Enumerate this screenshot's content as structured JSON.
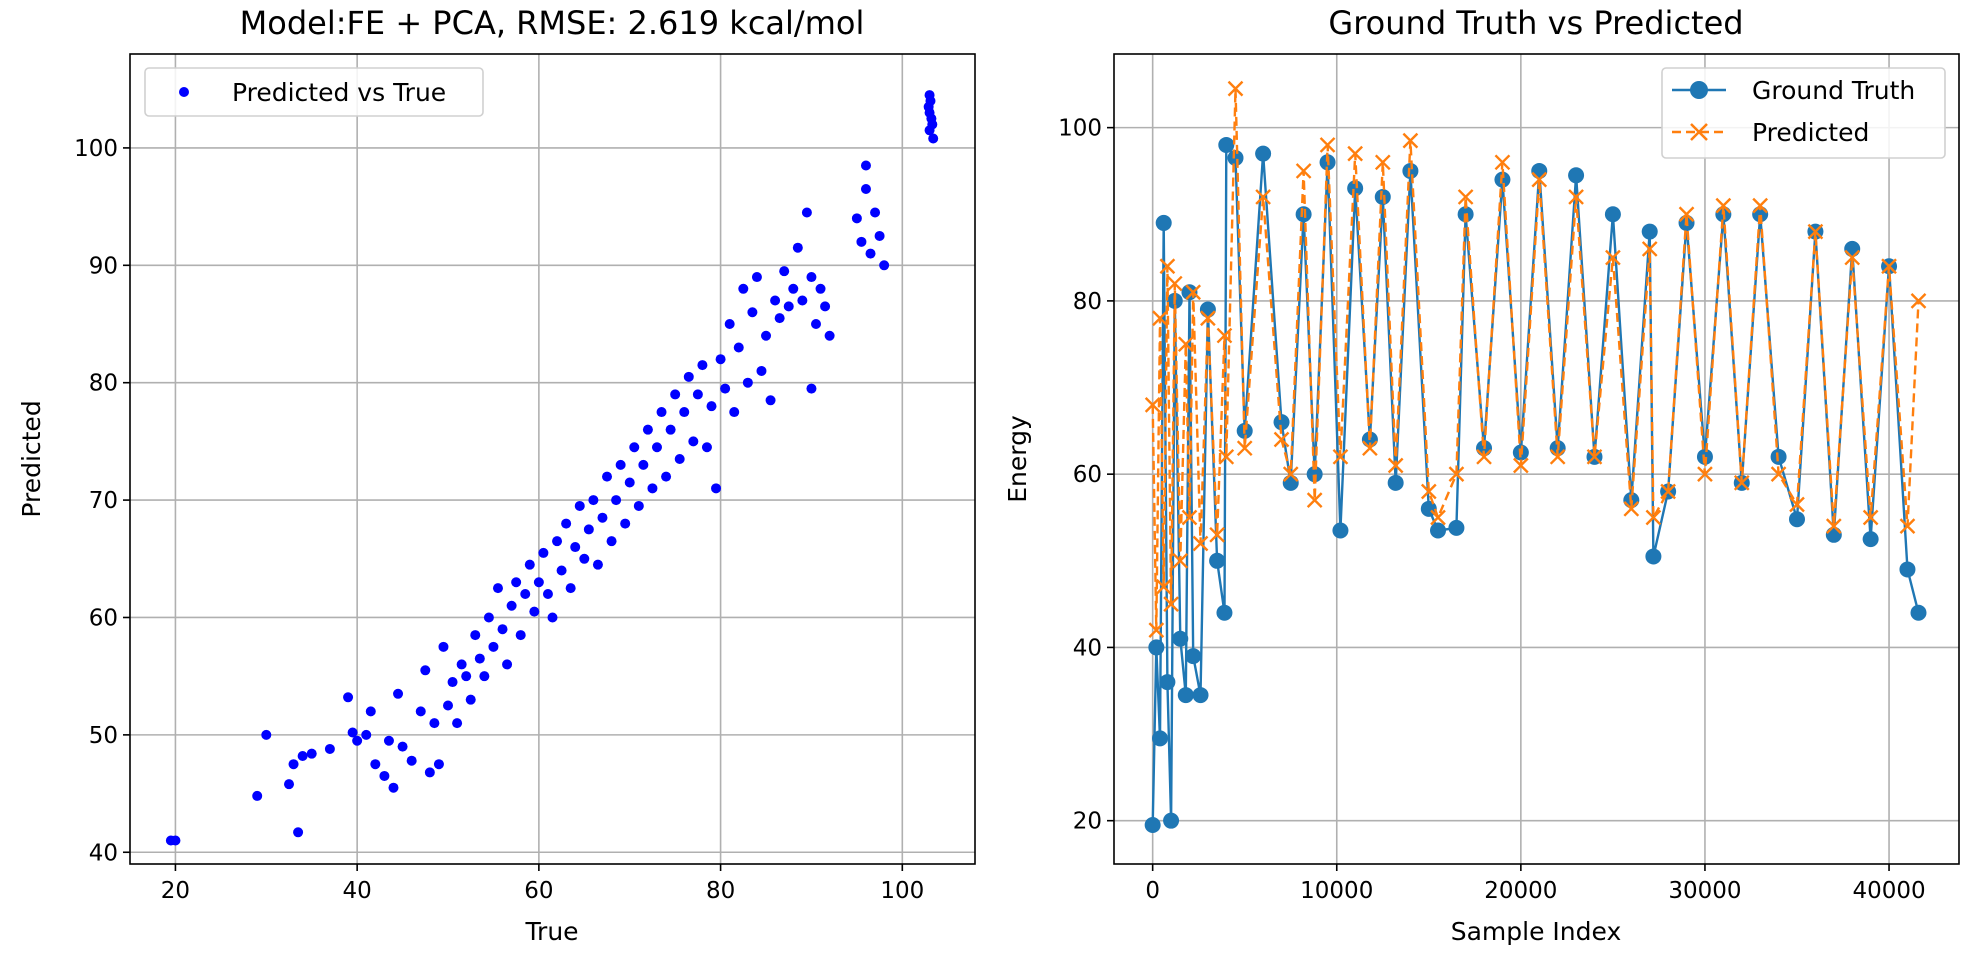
{
  "colors": {
    "scatter": "#0000ff",
    "ground_truth": "#1f77b4",
    "predicted": "#ff7f0e",
    "grid": "#b0b0b0"
  },
  "chart_data": [
    {
      "type": "scatter",
      "title": "Model:FE + PCA, RMSE: 2.619 kcal/mol",
      "xlabel": "True",
      "ylabel": "Predicted",
      "xlim": [
        15,
        108
      ],
      "ylim": [
        39,
        108
      ],
      "xticks": [
        20,
        40,
        60,
        80,
        100
      ],
      "yticks": [
        40,
        50,
        60,
        70,
        80,
        90,
        100
      ],
      "grid": true,
      "legend_position": "top-left",
      "series": [
        {
          "name": "Predicted vs True",
          "marker": "dot",
          "points": [
            [
              19.5,
              41
            ],
            [
              20,
              41
            ],
            [
              29,
              44.8
            ],
            [
              30,
              50
            ],
            [
              32.5,
              45.8
            ],
            [
              33,
              47.5
            ],
            [
              33.5,
              41.7
            ],
            [
              34,
              48.2
            ],
            [
              35,
              48.4
            ],
            [
              37,
              48.8
            ],
            [
              39,
              53.2
            ],
            [
              39.5,
              50.2
            ],
            [
              40,
              49.5
            ],
            [
              41,
              50
            ],
            [
              41.5,
              52
            ],
            [
              42,
              47.5
            ],
            [
              43,
              46.5
            ],
            [
              43.5,
              49.5
            ],
            [
              44,
              45.5
            ],
            [
              44.5,
              53.5
            ],
            [
              45,
              49
            ],
            [
              46,
              47.8
            ],
            [
              47,
              52
            ],
            [
              47.5,
              55.5
            ],
            [
              48,
              46.8
            ],
            [
              48.5,
              51
            ],
            [
              49,
              47.5
            ],
            [
              49.5,
              57.5
            ],
            [
              50,
              52.5
            ],
            [
              50.5,
              54.5
            ],
            [
              51,
              51
            ],
            [
              51.5,
              56
            ],
            [
              52,
              55
            ],
            [
              52.5,
              53
            ],
            [
              53,
              58.5
            ],
            [
              53.5,
              56.5
            ],
            [
              54,
              55
            ],
            [
              54.5,
              60
            ],
            [
              55,
              57.5
            ],
            [
              55.5,
              62.5
            ],
            [
              56,
              59
            ],
            [
              56.5,
              56
            ],
            [
              57,
              61
            ],
            [
              57.5,
              63
            ],
            [
              58,
              58.5
            ],
            [
              58.5,
              62
            ],
            [
              59,
              64.5
            ],
            [
              59.5,
              60.5
            ],
            [
              60,
              63
            ],
            [
              60.5,
              65.5
            ],
            [
              61,
              62
            ],
            [
              61.5,
              60
            ],
            [
              62,
              66.5
            ],
            [
              62.5,
              64
            ],
            [
              63,
              68
            ],
            [
              63.5,
              62.5
            ],
            [
              64,
              66
            ],
            [
              64.5,
              69.5
            ],
            [
              65,
              65
            ],
            [
              65.5,
              67.5
            ],
            [
              66,
              70
            ],
            [
              66.5,
              64.5
            ],
            [
              67,
              68.5
            ],
            [
              67.5,
              72
            ],
            [
              68,
              66.5
            ],
            [
              68.5,
              70
            ],
            [
              69,
              73
            ],
            [
              69.5,
              68
            ],
            [
              70,
              71.5
            ],
            [
              70.5,
              74.5
            ],
            [
              71,
              69.5
            ],
            [
              71.5,
              73
            ],
            [
              72,
              76
            ],
            [
              72.5,
              71
            ],
            [
              73,
              74.5
            ],
            [
              73.5,
              77.5
            ],
            [
              74,
              72
            ],
            [
              74.5,
              76
            ],
            [
              75,
              79
            ],
            [
              75.5,
              73.5
            ],
            [
              76,
              77.5
            ],
            [
              76.5,
              80.5
            ],
            [
              77,
              75
            ],
            [
              77.5,
              79
            ],
            [
              78,
              81.5
            ],
            [
              78.5,
              74.5
            ],
            [
              79,
              78
            ],
            [
              79.5,
              71
            ],
            [
              80,
              82
            ],
            [
              80.5,
              79.5
            ],
            [
              81,
              85
            ],
            [
              81.5,
              77.5
            ],
            [
              82,
              83
            ],
            [
              82.5,
              88
            ],
            [
              83,
              80
            ],
            [
              83.5,
              86
            ],
            [
              84,
              89
            ],
            [
              84.5,
              81
            ],
            [
              85,
              84
            ],
            [
              85.5,
              78.5
            ],
            [
              86,
              87
            ],
            [
              86.5,
              85.5
            ],
            [
              87,
              89.5
            ],
            [
              87.5,
              86.5
            ],
            [
              88,
              88
            ],
            [
              88.5,
              91.5
            ],
            [
              89,
              87
            ],
            [
              89.5,
              94.5
            ],
            [
              90,
              89
            ],
            [
              90.5,
              85
            ],
            [
              91,
              88
            ],
            [
              91.5,
              86.5
            ],
            [
              92,
              84
            ],
            [
              90,
              79.5
            ],
            [
              95,
              94
            ],
            [
              95.5,
              92
            ],
            [
              96,
              96.5
            ],
            [
              96.5,
              91
            ],
            [
              97,
              94.5
            ],
            [
              97.5,
              92.5
            ],
            [
              98,
              90
            ],
            [
              96,
              98.5
            ],
            [
              103,
              101.5
            ],
            [
              103,
              103
            ],
            [
              103,
              104.5
            ],
            [
              103.2,
              102.5
            ],
            [
              103.4,
              100.8
            ],
            [
              103.1,
              104
            ],
            [
              102.9,
              103.5
            ],
            [
              103.3,
              102
            ]
          ]
        }
      ]
    },
    {
      "type": "line",
      "title": "Ground Truth vs Predicted",
      "xlabel": "Sample Index",
      "ylabel": "Energy",
      "xlim": [
        -2100,
        43800
      ],
      "ylim": [
        15,
        108.5
      ],
      "xticks": [
        0,
        10000,
        20000,
        30000,
        40000
      ],
      "yticks": [
        20,
        40,
        60,
        80,
        100
      ],
      "grid": true,
      "legend_position": "top-right",
      "series": [
        {
          "name": "Ground Truth",
          "marker": "circle",
          "points": [
            [
              0,
              19.5
            ],
            [
              200,
              40
            ],
            [
              400,
              29.5
            ],
            [
              600,
              89
            ],
            [
              800,
              36
            ],
            [
              1000,
              20
            ],
            [
              1200,
              80
            ],
            [
              1500,
              41
            ],
            [
              1800,
              34.5
            ],
            [
              2000,
              81
            ],
            [
              2200,
              39
            ],
            [
              2600,
              34.5
            ],
            [
              3000,
              79
            ],
            [
              3500,
              50
            ],
            [
              3900,
              44
            ],
            [
              4000,
              98
            ],
            [
              4500,
              96.5
            ],
            [
              5000,
              65
            ],
            [
              6000,
              97
            ],
            [
              7000,
              66
            ],
            [
              7500,
              59
            ],
            [
              8200,
              90
            ],
            [
              8800,
              60
            ],
            [
              9500,
              96
            ],
            [
              10200,
              53.5
            ],
            [
              11000,
              93
            ],
            [
              11800,
              64
            ],
            [
              12500,
              92
            ],
            [
              13200,
              59
            ],
            [
              14000,
              95
            ],
            [
              15000,
              56
            ],
            [
              15500,
              53.5
            ],
            [
              16500,
              53.8
            ],
            [
              17000,
              90
            ],
            [
              18000,
              63
            ],
            [
              19000,
              94
            ],
            [
              20000,
              62.5
            ],
            [
              21000,
              95
            ],
            [
              22000,
              63
            ],
            [
              23000,
              94.5
            ],
            [
              24000,
              62
            ],
            [
              25000,
              90
            ],
            [
              26000,
              57
            ],
            [
              27000,
              88
            ],
            [
              27200,
              50.5
            ],
            [
              28000,
              58
            ],
            [
              29000,
              89
            ],
            [
              30000,
              62
            ],
            [
              31000,
              90
            ],
            [
              32000,
              59
            ],
            [
              33000,
              90
            ],
            [
              34000,
              62
            ],
            [
              35000,
              54.8
            ],
            [
              36000,
              88
            ],
            [
              37000,
              53
            ],
            [
              38000,
              86
            ],
            [
              39000,
              52.5
            ],
            [
              40000,
              84
            ],
            [
              41000,
              49
            ],
            [
              41600,
              44
            ]
          ]
        },
        {
          "name": "Predicted",
          "marker": "x",
          "points": [
            [
              0,
              68
            ],
            [
              200,
              42
            ],
            [
              400,
              78
            ],
            [
              600,
              47
            ],
            [
              800,
              84
            ],
            [
              1000,
              45
            ],
            [
              1200,
              82
            ],
            [
              1500,
              50
            ],
            [
              1800,
              75
            ],
            [
              2000,
              55
            ],
            [
              2200,
              81
            ],
            [
              2600,
              52
            ],
            [
              3000,
              78
            ],
            [
              3500,
              53
            ],
            [
              3900,
              76
            ],
            [
              4000,
              62
            ],
            [
              4500,
              104.5
            ],
            [
              5000,
              63
            ],
            [
              6000,
              92
            ],
            [
              7000,
              64
            ],
            [
              7500,
              60
            ],
            [
              8200,
              95
            ],
            [
              8800,
              57
            ],
            [
              9500,
              98
            ],
            [
              10200,
              62
            ],
            [
              11000,
              97
            ],
            [
              11800,
              63
            ],
            [
              12500,
              96
            ],
            [
              13200,
              61
            ],
            [
              14000,
              98.5
            ],
            [
              15000,
              58
            ],
            [
              15500,
              55
            ],
            [
              16500,
              60
            ],
            [
              17000,
              92
            ],
            [
              18000,
              62
            ],
            [
              19000,
              96
            ],
            [
              20000,
              61
            ],
            [
              21000,
              94
            ],
            [
              22000,
              62
            ],
            [
              23000,
              92
            ],
            [
              24000,
              62
            ],
            [
              25000,
              85
            ],
            [
              26000,
              56
            ],
            [
              27000,
              86
            ],
            [
              27200,
              55
            ],
            [
              28000,
              58
            ],
            [
              29000,
              90
            ],
            [
              30000,
              60
            ],
            [
              31000,
              91
            ],
            [
              32000,
              59
            ],
            [
              33000,
              91
            ],
            [
              34000,
              60
            ],
            [
              35000,
              56.5
            ],
            [
              36000,
              88
            ],
            [
              37000,
              54
            ],
            [
              38000,
              85
            ],
            [
              39000,
              55
            ],
            [
              40000,
              84
            ],
            [
              41000,
              54
            ],
            [
              41600,
              80
            ]
          ]
        }
      ]
    }
  ]
}
